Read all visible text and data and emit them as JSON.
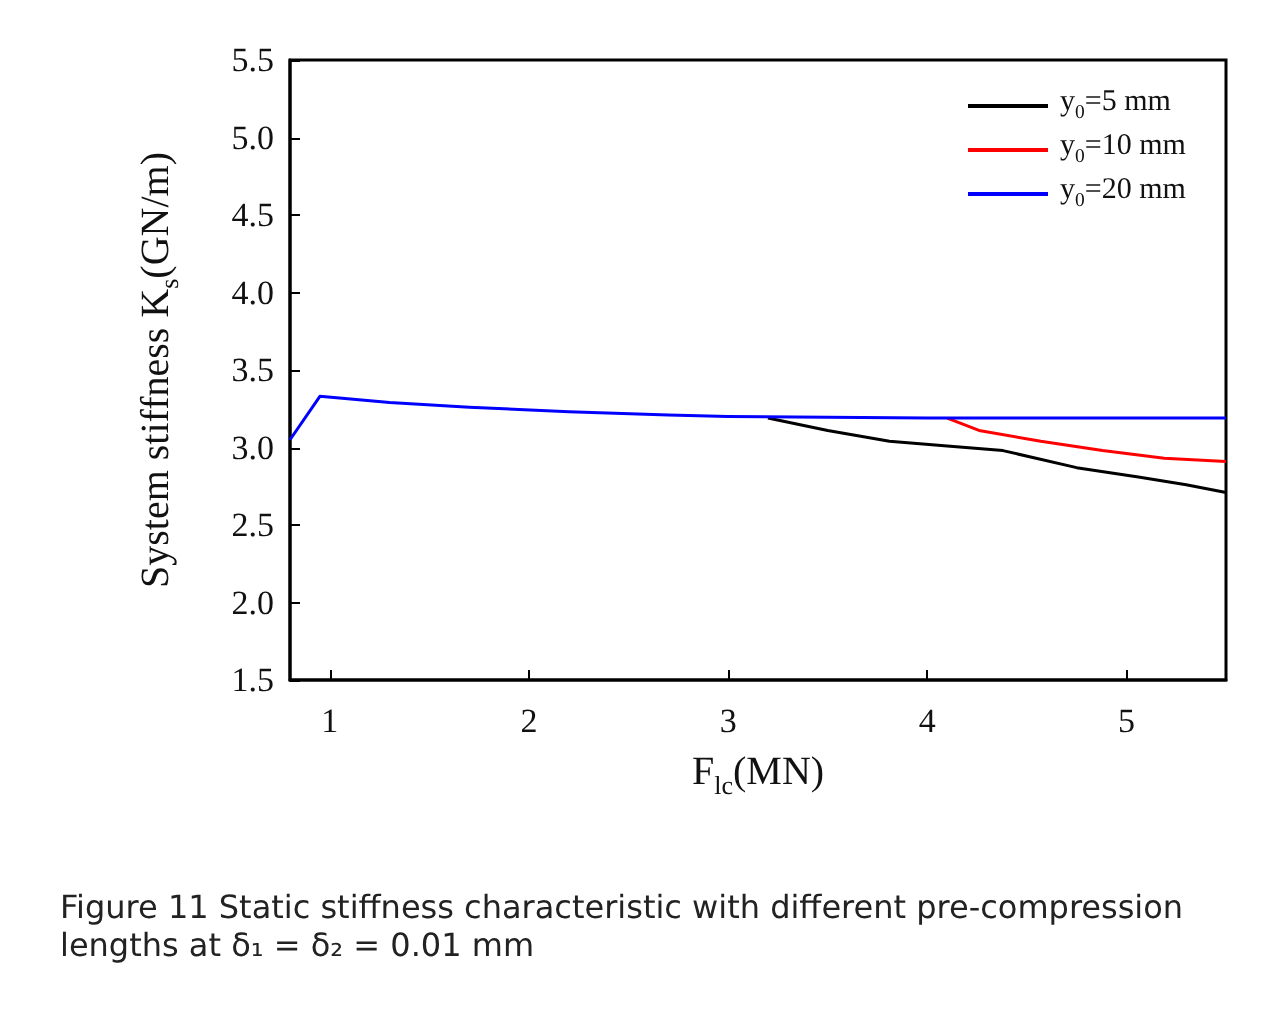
{
  "chart_data": {
    "type": "line",
    "xlabel": "F$_{lc}$(MN)",
    "ylabel": "System stiffness K$_{s}$(GN/m)",
    "annotations": [
      "Figure 11  Static stiffness characteristic with different pre-compression lengths at δ₁ = δ₂ = 0.01 mm"
    ],
    "xlim": [
      0.8,
      5.5
    ],
    "xticks": [
      1,
      2,
      3,
      4,
      5
    ],
    "ylim": [
      1.5,
      5.5
    ],
    "yticks": [
      1.5,
      {
        "value": 2,
        "label": "2.0"
      },
      2.5,
      {
        "value": 3,
        "label": "3.0"
      },
      3.5,
      {
        "value": 4,
        "label": "4.0"
      },
      4.5,
      {
        "value": 5,
        "label": "5.0"
      },
      5.5
    ],
    "grid": false,
    "legend": "top right",
    "marker": "none",
    "line_style": "solid",
    "series": [
      {
        "name": "y$_{0}$=5 mm",
        "color": "#000000",
        "x": [
          3.2,
          3.5,
          3.81,
          4.1,
          4.38,
          4.75,
          5.06,
          5.3,
          5.5
        ],
        "values": [
          3.19,
          3.11,
          3.04,
          3.01,
          2.98,
          2.87,
          2.81,
          2.76,
          2.71
        ]
      },
      {
        "name": "y$_{0}$=10 mm",
        "color": "#ff0000",
        "x": [
          4.1,
          4.26,
          4.57,
          4.88,
          5.19,
          5.5
        ],
        "values": [
          3.19,
          3.11,
          3.04,
          2.98,
          2.93,
          2.91
        ]
      },
      {
        "name": "y$_{0}$=20 mm",
        "color": "#0000ff",
        "x": [
          0.8,
          0.95,
          1.3,
          1.7,
          2.2,
          2.7,
          3.0,
          4.0,
          5.5
        ],
        "values": [
          3.05,
          3.33,
          3.29,
          3.26,
          3.23,
          3.21,
          3.2,
          3.19,
          3.19
        ]
      }
    ]
  }
}
